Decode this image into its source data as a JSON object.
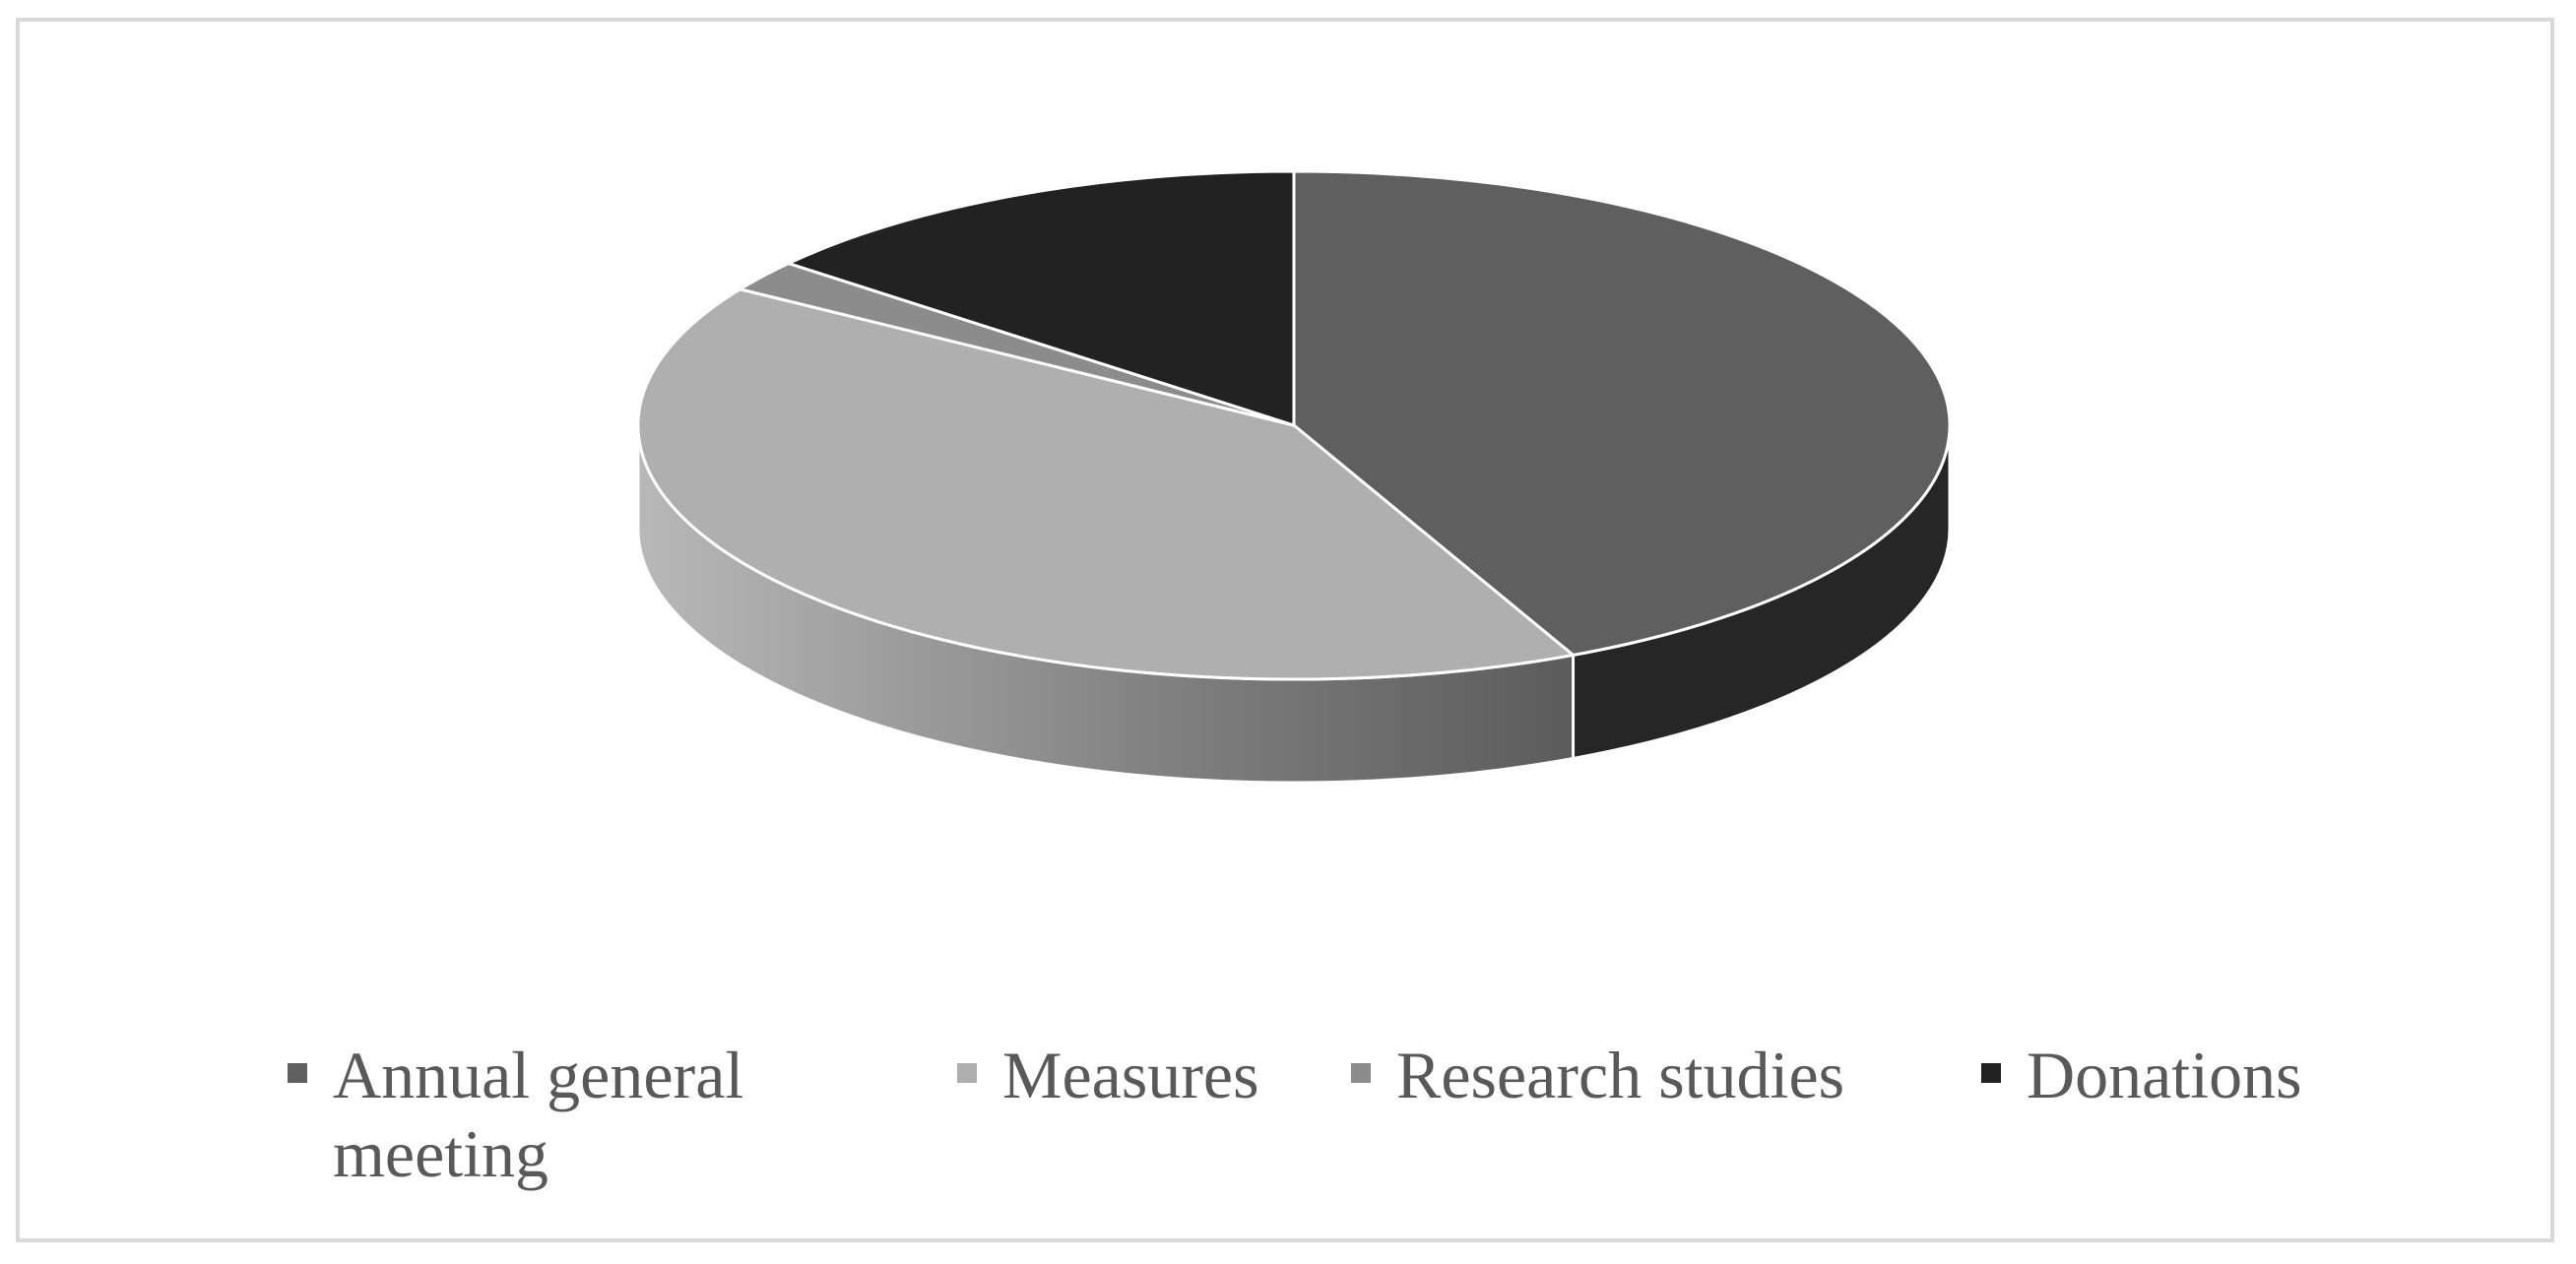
{
  "chart_data": {
    "type": "pie",
    "style": "3d",
    "title": "",
    "legend_position": "bottom",
    "categories": [
      "Annual general meeting",
      "Measures",
      "Research studies",
      "Donations"
    ],
    "values": [
      43,
      41,
      2,
      14
    ],
    "colors": [
      "#5f5f5f",
      "#afafaf",
      "#8c8c8c",
      "#222222"
    ]
  }
}
